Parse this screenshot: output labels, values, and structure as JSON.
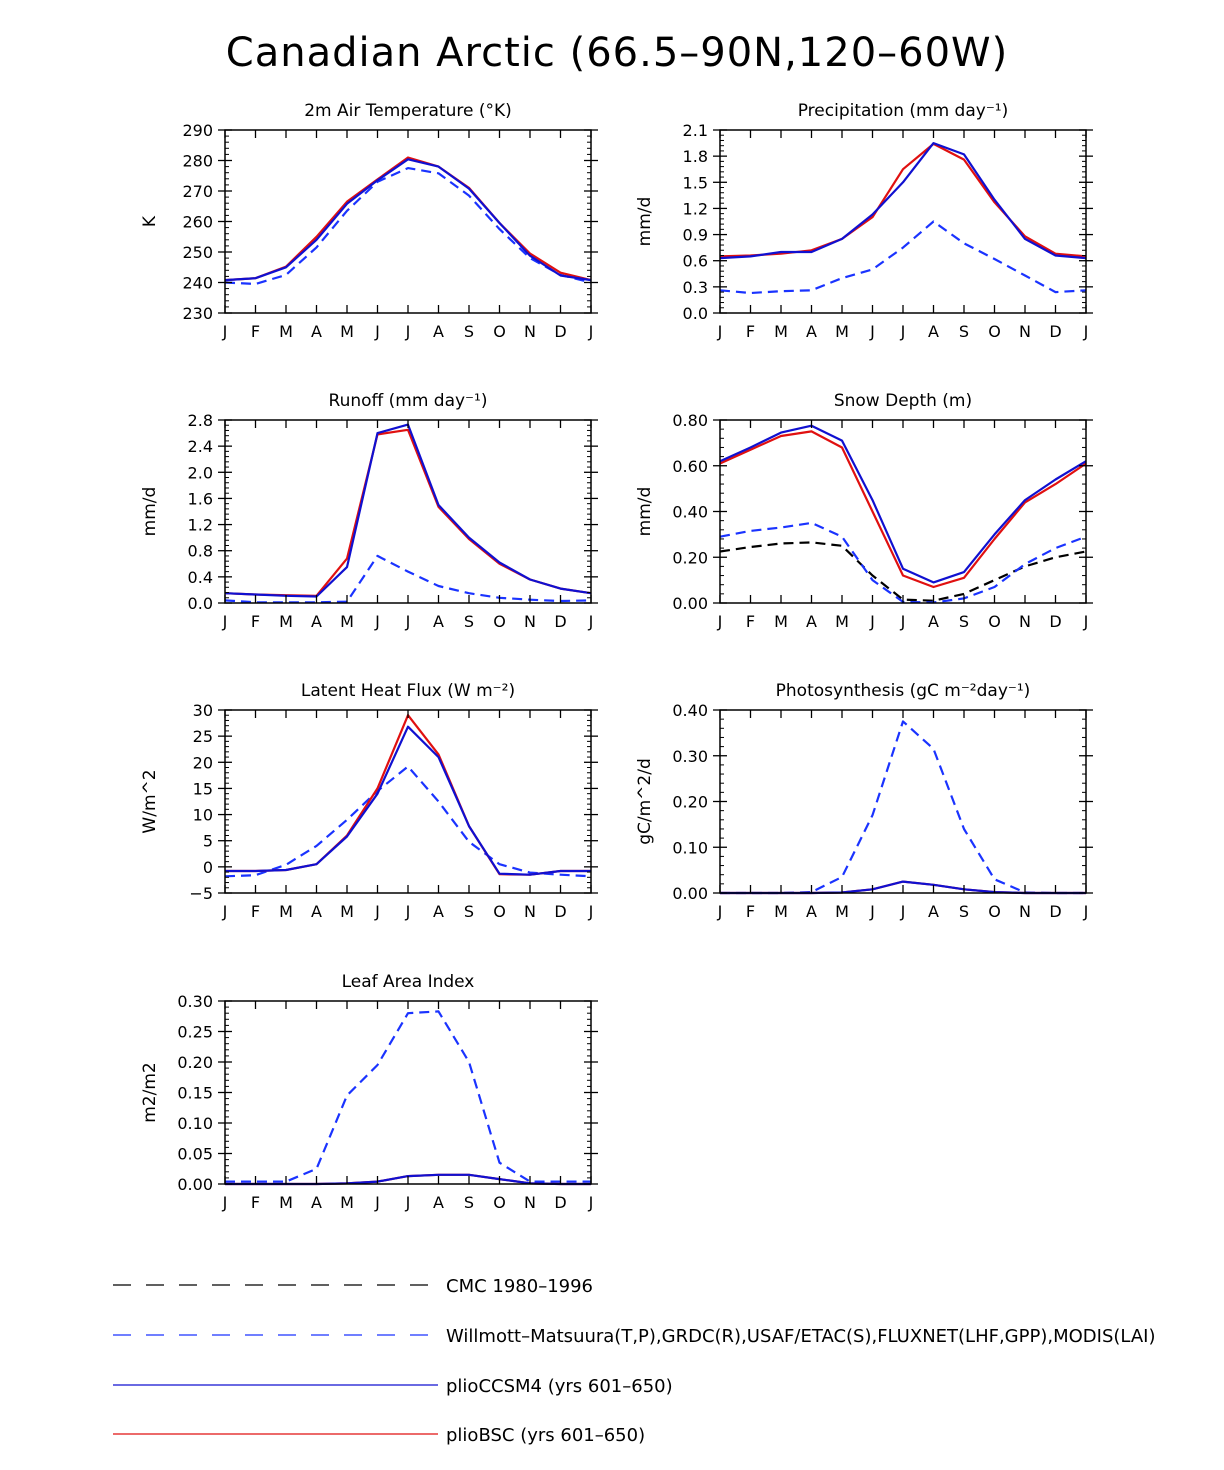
{
  "figure": {
    "title": "Canadian Arctic (66.5–90N,120–60W)"
  },
  "months": [
    "J",
    "F",
    "M",
    "A",
    "M",
    "J",
    "J",
    "A",
    "S",
    "O",
    "N",
    "D",
    "J"
  ],
  "chart_data": [
    {
      "id": "temp",
      "type": "line",
      "title": "2m Air Temperature (°K)",
      "ylabel": "K",
      "ylim": [
        230,
        290
      ],
      "yticks": [
        230,
        240,
        250,
        260,
        270,
        280,
        290
      ],
      "ytick_labels": [
        "230",
        "240",
        "250",
        "260",
        "270",
        "280",
        "290"
      ],
      "series": [
        {
          "name": "Willmott-Matsuura",
          "values": [
            240,
            239.5,
            242.5,
            251.5,
            263.5,
            273,
            277.5,
            275.8,
            268.5,
            257.5,
            248,
            242.5,
            240
          ]
        },
        {
          "name": "plioBSC",
          "values": [
            240.8,
            241.4,
            245.2,
            255,
            266.5,
            273.8,
            281,
            278,
            271,
            259.5,
            249.5,
            243.2,
            240.8
          ]
        },
        {
          "name": "plioCCSM4",
          "values": [
            240.8,
            241.4,
            245,
            254,
            265.8,
            273.5,
            280.4,
            278,
            270.8,
            259.5,
            248.8,
            242.3,
            240.8
          ]
        }
      ]
    },
    {
      "id": "precip",
      "type": "line",
      "title": "Precipitation (mm day⁻¹)",
      "ylabel": "mm/d",
      "ylim": [
        0,
        2.1
      ],
      "yticks": [
        0,
        0.3,
        0.6,
        0.9,
        1.2,
        1.5,
        1.8,
        2.1
      ],
      "ytick_labels": [
        "0.0",
        "0.3",
        "0.6",
        "0.9",
        "1.2",
        "1.5",
        "1.8",
        "2.1"
      ],
      "series": [
        {
          "name": "Willmott-Matsuura",
          "values": [
            0.26,
            0.23,
            0.25,
            0.26,
            0.4,
            0.5,
            0.75,
            1.05,
            0.8,
            0.62,
            0.43,
            0.24,
            0.26
          ]
        },
        {
          "name": "plioBSC",
          "values": [
            0.65,
            0.66,
            0.68,
            0.72,
            0.85,
            1.1,
            1.65,
            1.94,
            1.76,
            1.27,
            0.88,
            0.68,
            0.65
          ]
        },
        {
          "name": "plioCCSM4",
          "values": [
            0.63,
            0.65,
            0.7,
            0.7,
            0.85,
            1.13,
            1.5,
            1.95,
            1.82,
            1.3,
            0.85,
            0.66,
            0.63
          ]
        }
      ]
    },
    {
      "id": "runoff",
      "type": "line",
      "title": "Runoff (mm day⁻¹)",
      "ylabel": "mm/d",
      "ylim": [
        0,
        2.8
      ],
      "yticks": [
        0,
        0.4,
        0.8,
        1.2,
        1.6,
        2.0,
        2.4,
        2.8
      ],
      "ytick_labels": [
        "0.0",
        "0.4",
        "0.8",
        "1.2",
        "1.6",
        "2.0",
        "2.4",
        "2.8"
      ],
      "series": [
        {
          "name": "GRDC",
          "values": [
            0.04,
            0.01,
            0.01,
            0.01,
            0.02,
            0.72,
            0.48,
            0.26,
            0.15,
            0.08,
            0.05,
            0.03,
            0.04
          ]
        },
        {
          "name": "plioBSC",
          "values": [
            0.15,
            0.13,
            0.12,
            0.11,
            0.68,
            2.58,
            2.65,
            1.47,
            0.98,
            0.6,
            0.36,
            0.22,
            0.15
          ]
        },
        {
          "name": "plioCCSM4",
          "values": [
            0.15,
            0.13,
            0.11,
            0.1,
            0.55,
            2.6,
            2.73,
            1.5,
            1.0,
            0.62,
            0.36,
            0.22,
            0.15
          ]
        }
      ]
    },
    {
      "id": "snow",
      "type": "line",
      "title": "Snow Depth (m)",
      "ylabel": "mm/d",
      "ylim": [
        0,
        0.8
      ],
      "yticks": [
        0,
        0.2,
        0.4,
        0.6,
        0.8
      ],
      "ytick_labels": [
        "0.00",
        "0.20",
        "0.40",
        "0.60",
        "0.80"
      ],
      "series": [
        {
          "name": "CMC 1980-1996",
          "values": [
            0.225,
            0.245,
            0.26,
            0.265,
            0.25,
            0.12,
            0.015,
            0.01,
            0.04,
            0.1,
            0.16,
            0.2,
            0.225
          ]
        },
        {
          "name": "USAF/ETAC",
          "values": [
            0.29,
            0.315,
            0.33,
            0.35,
            0.29,
            0.1,
            0.005,
            0.002,
            0.02,
            0.07,
            0.17,
            0.24,
            0.29
          ]
        },
        {
          "name": "plioBSC",
          "values": [
            0.61,
            0.67,
            0.73,
            0.75,
            0.68,
            0.4,
            0.12,
            0.07,
            0.11,
            0.28,
            0.44,
            0.52,
            0.61
          ]
        },
        {
          "name": "plioCCSM4",
          "values": [
            0.62,
            0.68,
            0.745,
            0.775,
            0.71,
            0.45,
            0.15,
            0.09,
            0.135,
            0.3,
            0.45,
            0.54,
            0.62
          ]
        }
      ]
    },
    {
      "id": "lhf",
      "type": "line",
      "title": "Latent Heat Flux (W m⁻²)",
      "ylabel": "W/m^2",
      "ylim": [
        -5,
        30
      ],
      "yticks": [
        -5,
        0,
        5,
        10,
        15,
        20,
        25,
        30
      ],
      "ytick_labels": [
        "−5",
        "0",
        "5",
        "10",
        "15",
        "20",
        "25",
        "30"
      ],
      "series": [
        {
          "name": "FLUXNET",
          "values": [
            -1.8,
            -1.6,
            0.4,
            4,
            9,
            14.5,
            19.2,
            12.5,
            4.8,
            0.5,
            -1.1,
            -1.5,
            -1.8
          ]
        },
        {
          "name": "plioBSC",
          "values": [
            -0.8,
            -0.8,
            -0.6,
            0.5,
            6,
            15,
            29,
            21.5,
            7.8,
            -1.4,
            -1.5,
            -0.8,
            -0.8
          ]
        },
        {
          "name": "plioCCSM4",
          "values": [
            -0.8,
            -0.8,
            -0.6,
            0.5,
            5.8,
            14,
            26.8,
            21,
            7.8,
            -1.3,
            -1.5,
            -0.8,
            -0.8
          ]
        }
      ]
    },
    {
      "id": "photo",
      "type": "line",
      "title": "Photosynthesis (gC m⁻²day⁻¹)",
      "ylabel": "gC/m^2/d",
      "ylim": [
        0,
        0.4
      ],
      "yticks": [
        0,
        0.1,
        0.2,
        0.3,
        0.4
      ],
      "ytick_labels": [
        "0.00",
        "0.10",
        "0.20",
        "0.30",
        "0.40"
      ],
      "series": [
        {
          "name": "FLUXNET",
          "values": [
            0,
            0,
            0,
            0.002,
            0.035,
            0.17,
            0.375,
            0.315,
            0.14,
            0.03,
            0.001,
            0,
            0
          ]
        },
        {
          "name": "plioBSC",
          "values": [
            0,
            0,
            0,
            0,
            0.001,
            0.008,
            0.025,
            0.018,
            0.008,
            0.002,
            0,
            0,
            0
          ]
        },
        {
          "name": "plioCCSM4",
          "values": [
            0,
            0,
            0,
            0,
            0.001,
            0.008,
            0.025,
            0.018,
            0.008,
            0.002,
            0,
            0,
            0
          ]
        }
      ]
    },
    {
      "id": "lai",
      "type": "line",
      "title": "Leaf Area Index",
      "ylabel": "m2/m2",
      "ylim": [
        0,
        0.3
      ],
      "yticks": [
        0,
        0.05,
        0.1,
        0.15,
        0.2,
        0.25,
        0.3
      ],
      "ytick_labels": [
        "0.00",
        "0.05",
        "0.10",
        "0.15",
        "0.20",
        "0.25",
        "0.30"
      ],
      "series": [
        {
          "name": "MODIS",
          "values": [
            0.004,
            0.004,
            0.004,
            0.025,
            0.145,
            0.195,
            0.28,
            0.283,
            0.2,
            0.035,
            0.004,
            0.004,
            0.004
          ]
        },
        {
          "name": "plioBSC",
          "values": [
            0,
            0,
            0,
            0,
            0.001,
            0.004,
            0.013,
            0.015,
            0.015,
            0.008,
            0.001,
            0,
            0
          ]
        },
        {
          "name": "plioCCSM4",
          "values": [
            0,
            0,
            0,
            0,
            0.001,
            0.004,
            0.013,
            0.015,
            0.015,
            0.008,
            0.001,
            0,
            0
          ]
        }
      ]
    }
  ],
  "legend": [
    {
      "label": "CMC 1980–1996",
      "color": "#000000",
      "dash": true
    },
    {
      "label": "Willmott–Matsuura(T,P),GRDC(R),USAF/ETAC(S),FLUXNET(LHF,GPP),MODIS(LAI)",
      "color": "#1a33ff",
      "dash": true
    },
    {
      "label": "plioCCSM4 (yrs 601–650)",
      "color": "#1010d0",
      "dash": false
    },
    {
      "label": "plioBSC (yrs 601–650)",
      "color": "#e01010",
      "dash": false
    }
  ],
  "colors": {
    "obs_black": "#000000",
    "obs_blue": "#1a33ff",
    "ccsm4": "#1010d0",
    "bsc": "#e01010"
  }
}
